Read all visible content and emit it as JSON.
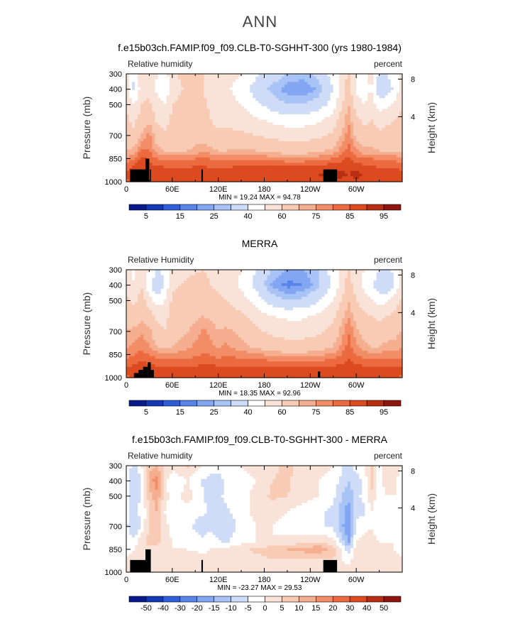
{
  "page_title": "ANN",
  "chart_data": [
    {
      "type": "heatmap",
      "title": "f.e15b03ch.FAMIP.f09_f09.CLB-T0-SGHHT-300 (yrs 1980-1984)",
      "left_label": "Relative humidity",
      "right_label": "percent",
      "ylabel": "Pressure (mb)",
      "ylabel_right": "Height (km)",
      "y_ticks": [
        "300",
        "400",
        "500",
        "700",
        "850",
        "1000"
      ],
      "y_ticks_right": [
        "8",
        "4"
      ],
      "x_ticks": [
        "0",
        "60E",
        "120E",
        "180",
        "120W",
        "60W"
      ],
      "xlim": [
        0,
        360
      ],
      "ylim": [
        1000,
        300
      ],
      "minmax_text": "MIN =  19.24   MAX =  94.78",
      "min": 19.24,
      "max": 94.78,
      "colorbar_labels": [
        "5",
        "15",
        "25",
        "40",
        "60",
        "75",
        "85",
        "95"
      ],
      "colorbar_colors": [
        "#0a1a8a",
        "#1538b5",
        "#2f5fd8",
        "#5885ea",
        "#82a6f2",
        "#a8c3f6",
        "#cfdcf8",
        "#ffffff",
        "#f9e3d8",
        "#f8cbb5",
        "#f5ae8f",
        "#f28d67",
        "#ec6a3f",
        "#dc4a20",
        "#b82e13",
        "#8f1510"
      ],
      "levels": [
        1,
        5,
        10,
        15,
        20,
        25,
        30,
        40,
        50,
        60,
        70,
        75,
        80,
        85,
        90,
        95,
        100
      ],
      "lon_nodes": [
        0,
        10,
        20,
        30,
        40,
        50,
        60,
        80,
        100,
        110,
        120,
        130,
        150,
        170,
        190,
        210,
        230,
        250,
        270,
        290,
        300,
        310,
        320,
        330,
        340,
        350,
        360
      ],
      "lev_nodes": [
        300,
        400,
        500,
        600,
        700,
        800,
        850,
        900,
        950,
        1000
      ],
      "values": [
        [
          55,
          40,
          58,
          60,
          50,
          45,
          58,
          65,
          60,
          55,
          52,
          55,
          50,
          42,
          35,
          30,
          28,
          32,
          45,
          62,
          50,
          48,
          55,
          38,
          40,
          45,
          55
        ],
        [
          55,
          38,
          55,
          58,
          48,
          40,
          55,
          62,
          60,
          54,
          50,
          52,
          45,
          35,
          28,
          22,
          20,
          26,
          40,
          65,
          48,
          45,
          50,
          32,
          34,
          42,
          55
        ],
        [
          60,
          50,
          60,
          62,
          55,
          50,
          60,
          65,
          63,
          58,
          55,
          55,
          50,
          42,
          35,
          30,
          30,
          34,
          45,
          70,
          55,
          50,
          55,
          45,
          48,
          52,
          60
        ],
        [
          62,
          58,
          64,
          68,
          58,
          56,
          62,
          65,
          64,
          60,
          58,
          58,
          56,
          52,
          48,
          45,
          45,
          48,
          55,
          75,
          62,
          58,
          60,
          56,
          58,
          60,
          62
        ],
        [
          65,
          62,
          70,
          78,
          65,
          62,
          64,
          66,
          66,
          63,
          62,
          62,
          62,
          60,
          58,
          56,
          56,
          58,
          62,
          78,
          68,
          64,
          64,
          62,
          64,
          64,
          65
        ],
        [
          70,
          72,
          82,
          80,
          72,
          70,
          70,
          70,
          74,
          72,
          70,
          70,
          72,
          70,
          68,
          66,
          66,
          68,
          72,
          82,
          76,
          72,
          72,
          70,
          70,
          70,
          70
        ],
        [
          76,
          80,
          86,
          84,
          80,
          78,
          78,
          78,
          82,
          80,
          78,
          78,
          80,
          78,
          78,
          76,
          76,
          78,
          80,
          86,
          82,
          80,
          80,
          78,
          78,
          78,
          76
        ],
        [
          82,
          86,
          88,
          86,
          86,
          84,
          84,
          84,
          86,
          84,
          84,
          84,
          86,
          86,
          86,
          86,
          86,
          86,
          88,
          88,
          88,
          86,
          86,
          84,
          84,
          84,
          82
        ],
        [
          86,
          88,
          90,
          88,
          90,
          90,
          90,
          88,
          88,
          88,
          88,
          88,
          90,
          90,
          90,
          90,
          90,
          90,
          92,
          90,
          92,
          90,
          90,
          90,
          90,
          90,
          86
        ],
        [
          84,
          86,
          88,
          86,
          88,
          88,
          88,
          86,
          86,
          86,
          86,
          86,
          88,
          88,
          88,
          88,
          88,
          88,
          90,
          88,
          90,
          88,
          88,
          88,
          88,
          88,
          84
        ]
      ],
      "terrain": [
        [
          5,
          25,
          920
        ],
        [
          25,
          30,
          850
        ],
        [
          31,
          32,
          920
        ],
        [
          98,
          100,
          920
        ],
        [
          257,
          275,
          920
        ]
      ]
    },
    {
      "type": "heatmap",
      "title": "MERRA",
      "left_label": "Relative Humidity",
      "right_label": "percent",
      "ylabel": "Pressure (mb)",
      "ylabel_right": "Height (km)",
      "y_ticks": [
        "300",
        "400",
        "500",
        "700",
        "850",
        "1000"
      ],
      "y_ticks_right": [
        "8",
        "4"
      ],
      "x_ticks": [
        "0",
        "60E",
        "120E",
        "180",
        "120W",
        "60W"
      ],
      "xlim": [
        0,
        360
      ],
      "ylim": [
        1000,
        300
      ],
      "minmax_text": "MIN =  18.35   MAX =  92.96",
      "min": 18.35,
      "max": 92.96,
      "colorbar_labels": [
        "5",
        "15",
        "25",
        "40",
        "60",
        "75",
        "85",
        "95"
      ],
      "colorbar_colors": [
        "#0a1a8a",
        "#1538b5",
        "#2f5fd8",
        "#5885ea",
        "#82a6f2",
        "#a8c3f6",
        "#cfdcf8",
        "#ffffff",
        "#f9e3d8",
        "#f8cbb5",
        "#f5ae8f",
        "#f28d67",
        "#ec6a3f",
        "#dc4a20",
        "#b82e13",
        "#8f1510"
      ],
      "levels": [
        1,
        5,
        10,
        15,
        20,
        25,
        30,
        40,
        50,
        60,
        70,
        75,
        80,
        85,
        90,
        95,
        100
      ],
      "lon_nodes": [
        0,
        10,
        20,
        30,
        40,
        50,
        60,
        80,
        100,
        110,
        120,
        130,
        150,
        170,
        190,
        210,
        230,
        250,
        270,
        290,
        300,
        310,
        320,
        330,
        340,
        350,
        360
      ],
      "lev_nodes": [
        300,
        400,
        500,
        600,
        700,
        800,
        850,
        900,
        950,
        1000
      ],
      "values": [
        [
          55,
          48,
          58,
          50,
          40,
          42,
          55,
          58,
          60,
          58,
          55,
          55,
          50,
          40,
          30,
          25,
          25,
          30,
          45,
          62,
          55,
          50,
          48,
          40,
          38,
          42,
          55
        ],
        [
          58,
          50,
          60,
          42,
          30,
          40,
          58,
          62,
          65,
          60,
          58,
          56,
          48,
          36,
          24,
          18,
          20,
          28,
          42,
          64,
          55,
          48,
          42,
          34,
          30,
          40,
          58
        ],
        [
          62,
          58,
          64,
          55,
          45,
          50,
          62,
          64,
          68,
          65,
          62,
          60,
          55,
          45,
          35,
          30,
          32,
          38,
          50,
          70,
          60,
          55,
          52,
          46,
          48,
          55,
          62
        ],
        [
          66,
          64,
          68,
          65,
          58,
          56,
          64,
          66,
          70,
          68,
          66,
          65,
          62,
          56,
          50,
          48,
          48,
          52,
          58,
          75,
          66,
          62,
          60,
          58,
          60,
          62,
          66
        ],
        [
          70,
          72,
          74,
          72,
          64,
          60,
          66,
          70,
          76,
          74,
          70,
          72,
          68,
          62,
          58,
          56,
          56,
          58,
          64,
          80,
          72,
          66,
          64,
          64,
          66,
          68,
          70
        ],
        [
          74,
          76,
          78,
          76,
          70,
          68,
          70,
          74,
          78,
          76,
          74,
          76,
          72,
          68,
          66,
          64,
          64,
          66,
          70,
          82,
          76,
          72,
          70,
          70,
          72,
          72,
          74
        ],
        [
          78,
          80,
          82,
          80,
          78,
          76,
          76,
          78,
          80,
          80,
          78,
          80,
          78,
          76,
          74,
          72,
          72,
          74,
          76,
          84,
          80,
          78,
          76,
          76,
          78,
          78,
          78
        ],
        [
          82,
          84,
          86,
          84,
          82,
          82,
          82,
          82,
          84,
          84,
          82,
          82,
          82,
          82,
          82,
          80,
          80,
          82,
          82,
          86,
          84,
          82,
          82,
          82,
          82,
          82,
          82
        ],
        [
          86,
          88,
          88,
          88,
          88,
          86,
          86,
          86,
          88,
          88,
          88,
          88,
          88,
          88,
          88,
          88,
          88,
          88,
          88,
          88,
          88,
          88,
          88,
          88,
          88,
          88,
          86
        ],
        [
          84,
          86,
          86,
          86,
          86,
          86,
          86,
          86,
          86,
          86,
          86,
          86,
          86,
          86,
          86,
          86,
          86,
          86,
          86,
          86,
          86,
          86,
          86,
          86,
          86,
          86,
          84
        ]
      ],
      "terrain": [
        [
          10,
          16,
          970
        ],
        [
          16,
          22,
          950
        ],
        [
          22,
          28,
          930
        ],
        [
          28,
          32,
          900
        ],
        [
          32,
          36,
          950
        ],
        [
          250,
          253,
          960
        ]
      ]
    },
    {
      "type": "heatmap",
      "title": "f.e15b03ch.FAMIP.f09_f09.CLB-T0-SGHHT-300 - MERRA",
      "left_label": "Relative humidity",
      "right_label": "percent",
      "ylabel": "Pressure (mb)",
      "ylabel_right": "Height (km)",
      "y_ticks": [
        "300",
        "400",
        "500",
        "700",
        "850",
        "1000"
      ],
      "y_ticks_right": [
        "8",
        "4"
      ],
      "x_ticks": [
        "0",
        "60E",
        "120E",
        "180",
        "120W",
        "60W"
      ],
      "xlim": [
        0,
        360
      ],
      "ylim": [
        1000,
        300
      ],
      "minmax_text": "MIN = -23.27   MAX =  29.53",
      "min": -23.27,
      "max": 29.53,
      "colorbar_labels": [
        "-50",
        "-40",
        "-30",
        "-20",
        "-15",
        "-10",
        "-5",
        "0",
        "5",
        "10",
        "15",
        "20",
        "30",
        "40",
        "50"
      ],
      "colorbar_colors": [
        "#0a1a8a",
        "#1538b5",
        "#2f5fd8",
        "#5885ea",
        "#82a6f2",
        "#a8c3f6",
        "#cfdcf8",
        "#ffffff",
        "#f9e3d8",
        "#f8cbb5",
        "#f5ae8f",
        "#f28d67",
        "#ec6a3f",
        "#dc4a20",
        "#b82e13",
        "#8f1510"
      ],
      "levels": [
        -60,
        -50,
        -40,
        -30,
        -20,
        -15,
        -10,
        -5,
        0,
        5,
        10,
        15,
        20,
        30,
        40,
        50,
        60
      ],
      "lon_nodes": [
        0,
        10,
        20,
        30,
        40,
        50,
        60,
        80,
        100,
        110,
        120,
        130,
        150,
        170,
        190,
        210,
        230,
        250,
        270,
        290,
        300,
        310,
        320,
        330,
        340,
        350,
        360
      ],
      "lev_nodes": [
        300,
        400,
        500,
        600,
        700,
        800,
        850,
        900,
        950,
        1000
      ],
      "values": [
        [
          0,
          -8,
          0,
          8,
          10,
          4,
          2,
          6,
          0,
          -4,
          -2,
          0,
          0,
          2,
          4,
          6,
          4,
          2,
          0,
          -8,
          -2,
          -2,
          6,
          -2,
          2,
          2,
          0
        ],
        [
          -4,
          -10,
          -6,
          12,
          18,
          2,
          -4,
          0,
          -6,
          -6,
          -8,
          -4,
          -2,
          0,
          5,
          6,
          2,
          0,
          -2,
          -10,
          -8,
          -4,
          8,
          -2,
          4,
          2,
          -4
        ],
        [
          -2,
          -8,
          -4,
          8,
          14,
          2,
          -2,
          2,
          -4,
          -8,
          -6,
          -4,
          -2,
          2,
          6,
          5,
          2,
          0,
          -4,
          -14,
          -6,
          -4,
          4,
          -4,
          0,
          0,
          -2
        ],
        [
          -4,
          -6,
          -4,
          4,
          10,
          0,
          -2,
          -2,
          -4,
          -6,
          -8,
          -6,
          -2,
          2,
          3,
          0,
          -2,
          -4,
          -6,
          -18,
          -6,
          -6,
          0,
          -4,
          -4,
          -2,
          -4
        ],
        [
          -4,
          -10,
          -4,
          6,
          10,
          2,
          -2,
          -4,
          -8,
          -6,
          -10,
          -8,
          -4,
          0,
          0,
          -2,
          -2,
          -4,
          -6,
          -20,
          -4,
          -2,
          0,
          -4,
          -4,
          -2,
          -4
        ],
        [
          -2,
          -4,
          4,
          6,
          8,
          2,
          0,
          -2,
          -4,
          -2,
          -4,
          -6,
          -2,
          0,
          0,
          2,
          2,
          4,
          2,
          -16,
          0,
          2,
          2,
          0,
          0,
          0,
          -2
        ],
        [
          -2,
          0,
          4,
          4,
          2,
          0,
          0,
          0,
          -2,
          0,
          2,
          2,
          4,
          6,
          8,
          10,
          12,
          14,
          8,
          -8,
          2,
          4,
          4,
          2,
          2,
          0,
          -2
        ],
        [
          0,
          2,
          4,
          2,
          2,
          2,
          2,
          2,
          2,
          2,
          2,
          2,
          4,
          4,
          6,
          6,
          6,
          6,
          6,
          -4,
          4,
          4,
          4,
          2,
          2,
          2,
          0
        ],
        [
          2,
          4,
          6,
          4,
          4,
          4,
          4,
          2,
          2,
          2,
          2,
          2,
          2,
          2,
          2,
          2,
          2,
          2,
          2,
          0,
          2,
          2,
          2,
          2,
          2,
          2,
          2
        ],
        [
          2,
          2,
          4,
          2,
          2,
          2,
          2,
          2,
          2,
          2,
          2,
          2,
          2,
          2,
          2,
          2,
          2,
          2,
          2,
          0,
          2,
          2,
          2,
          2,
          2,
          2,
          2
        ]
      ],
      "terrain": [
        [
          5,
          25,
          920
        ],
        [
          25,
          32,
          850
        ],
        [
          98,
          100,
          920
        ],
        [
          257,
          275,
          920
        ]
      ]
    }
  ]
}
